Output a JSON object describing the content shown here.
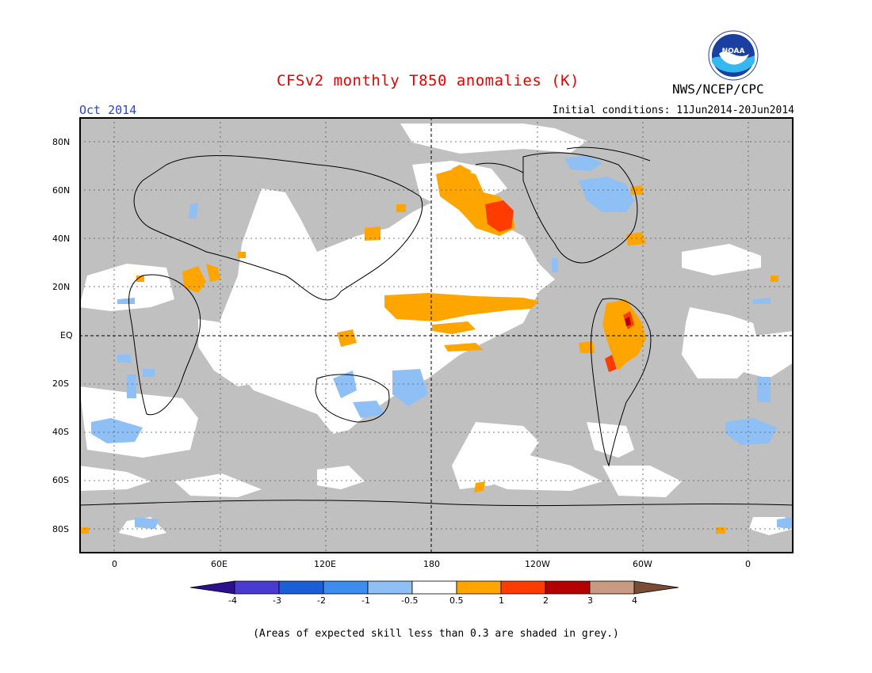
{
  "header": {
    "title": "CFSv2 monthly T850 anomalies (K)",
    "month": "Oct 2014",
    "initial_conditions": "Initial conditions: 11Jun2014-20Jun2014",
    "organization": "NWS/NCEP/CPC",
    "logo_text": "NOAA"
  },
  "axes": {
    "lat_labels": [
      "80N",
      "60N",
      "40N",
      "20N",
      "EQ",
      "20S",
      "40S",
      "60S",
      "80S"
    ],
    "lon_labels": [
      "0",
      "60E",
      "120E",
      "180",
      "120W",
      "60W",
      "0"
    ]
  },
  "colorbar": {
    "labels": [
      "-4",
      "-3",
      "-2",
      "-1",
      "-0.5",
      "0.5",
      "1",
      "2",
      "3",
      "4"
    ],
    "colors": [
      "#2c0f8f",
      "#4a3bd0",
      "#1a5fd6",
      "#3d8cf0",
      "#8ec0f5",
      "#ffffff",
      "#ffa500",
      "#ff3c00",
      "#b30000",
      "#c99a82",
      "#7a4b35"
    ]
  },
  "legend_colors": {
    "grey": "#c0c0c0",
    "orange": "#ffa500",
    "red": "#ff3c00",
    "darkred": "#b30000",
    "lightblue": "#8ec0f5",
    "white": "#ffffff"
  },
  "footnote": "(Areas of expected skill less than 0.3 are shaded in grey.)"
}
